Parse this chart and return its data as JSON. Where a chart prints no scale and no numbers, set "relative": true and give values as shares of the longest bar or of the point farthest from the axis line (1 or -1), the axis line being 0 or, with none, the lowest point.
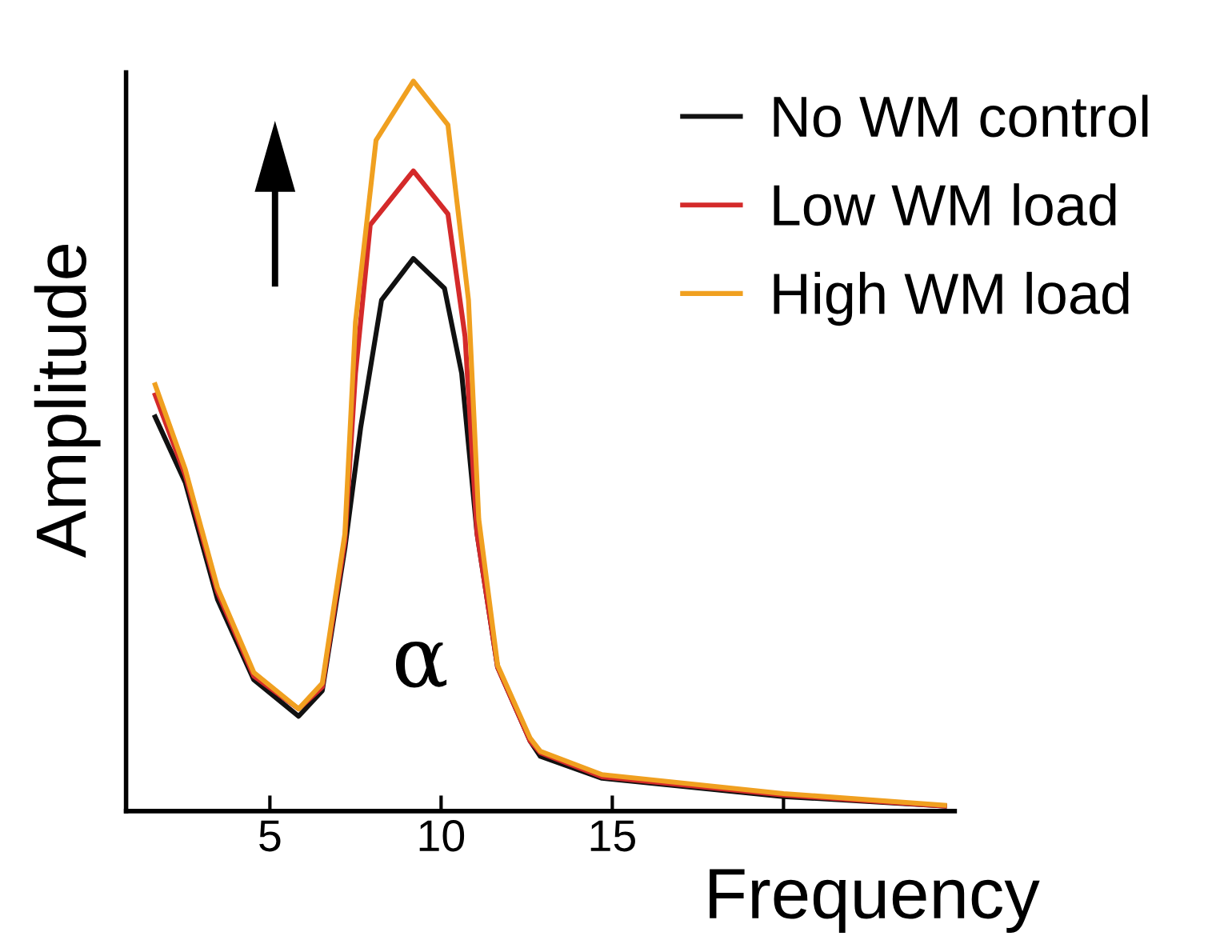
{
  "chart_data": {
    "type": "line",
    "xlabel": "Frequency",
    "ylabel": "Amplitude",
    "relative": true,
    "xlim": [
      0.8,
      25
    ],
    "xticks": [
      5,
      10,
      15,
      {
        "value": 20,
        "label": null
      }
    ],
    "legend": "top right",
    "grid": false,
    "annotations": [
      "α"
    ],
    "series": [
      {
        "name": "No WM control",
        "color": "#111111",
        "x": [
          1.65,
          2.53,
          3.47,
          4.53,
          5.84,
          6.53,
          7.19,
          7.65,
          8.26,
          9.19,
          10.1,
          10.6,
          11.05,
          11.65,
          12.6,
          12.9,
          14.7,
          20,
          24.7
        ],
        "values": [
          0.54,
          0.45,
          0.29,
          0.18,
          0.13,
          0.165,
          0.36,
          0.525,
          0.7,
          0.757,
          0.716,
          0.6,
          0.38,
          0.197,
          0.096,
          0.075,
          0.045,
          0.02,
          0.007
        ]
      },
      {
        "name": "Low WM load",
        "color": "#d42a2a",
        "x": [
          1.65,
          2.53,
          3.47,
          4.53,
          5.84,
          6.53,
          7.19,
          7.5,
          7.93,
          9.19,
          10.2,
          10.7,
          11.05,
          11.65,
          12.6,
          12.9,
          14.7,
          20,
          24.7
        ],
        "values": [
          0.57,
          0.46,
          0.3,
          0.185,
          0.14,
          0.17,
          0.37,
          0.6,
          0.803,
          0.877,
          0.818,
          0.65,
          0.38,
          0.197,
          0.096,
          0.08,
          0.047,
          0.022,
          0.007
        ]
      },
      {
        "name": "High WM load",
        "color": "#f0a020",
        "x": [
          1.65,
          2.53,
          3.47,
          4.53,
          5.84,
          6.53,
          7.19,
          7.5,
          8.1,
          9.19,
          10.2,
          10.8,
          11.1,
          11.65,
          12.6,
          12.9,
          14.7,
          20,
          24.7
        ],
        "values": [
          0.584,
          0.468,
          0.306,
          0.19,
          0.14,
          0.175,
          0.38,
          0.67,
          0.919,
          1,
          0.94,
          0.7,
          0.4,
          0.2,
          0.1,
          0.082,
          0.05,
          0.024,
          0.008
        ]
      }
    ]
  }
}
